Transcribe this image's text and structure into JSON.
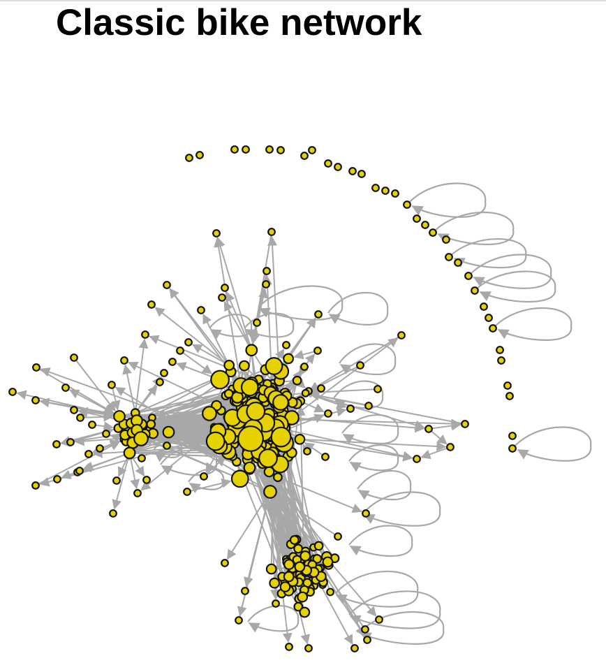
{
  "title": "Classic bike network",
  "graph": {
    "type": "directed-network",
    "node_color": "#e6d200",
    "node_outline_color": "#111111",
    "edge_color": "#a8a8a8",
    "self_loops": true
  }
}
